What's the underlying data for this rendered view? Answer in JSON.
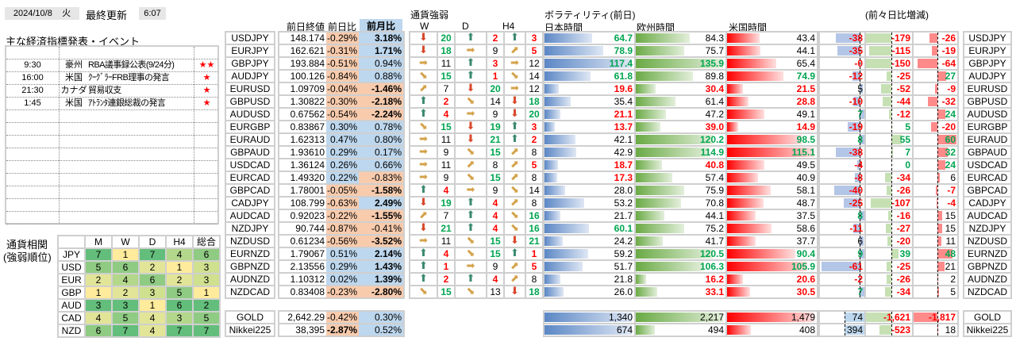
{
  "header": {
    "date": "2024/10/8",
    "weekday": "火",
    "last_update_label": "最終更新",
    "last_update_time": "6:07"
  },
  "events": {
    "title": "主な経済指標発表・イベント",
    "items": [
      {
        "time": "9:30",
        "country": "豪州",
        "title": "RBA議事録公表(9/24分)",
        "stars": "★★"
      },
      {
        "time": "16:00",
        "country": "米国",
        "title": "ｸｰｸﾞﾗｰFRB理事の発言",
        "stars": "★"
      },
      {
        "time": "21:30",
        "country": "カナダ",
        "title": "貿易収支",
        "stars": "★"
      },
      {
        "time": "1:45",
        "country": "米国",
        "title": "ｱﾄﾗﾝﾀ連銀総裁の発言",
        "stars": "★"
      }
    ]
  },
  "prices": {
    "headers": {
      "close": "前日終値",
      "daily": "前日比",
      "monthly": "前月比"
    }
  },
  "strength": {
    "title": "通貨強弱",
    "headers": [
      "W",
      "D",
      "H4"
    ]
  },
  "volatility": {
    "title": "ボラティリティ(前日)",
    "headers": [
      "日本時間",
      "欧州時間",
      "米国時間"
    ],
    "diff_title": "(前々日比増減)"
  },
  "pairs": [
    {
      "pair": "USDJPY",
      "close": "148.174",
      "d": "-0.29%",
      "m": "3.18%",
      "s": [
        [
          "down",
          20,
          "g"
        ],
        [
          "up",
          2,
          "r"
        ],
        [
          "up",
          3,
          "r"
        ]
      ],
      "v": [
        [
          "64.7",
          "g"
        ],
        [
          "84.3",
          "k"
        ],
        [
          "43.4",
          "k"
        ]
      ],
      "df": [
        [
          "-38",
          "r"
        ],
        [
          "-179",
          "r"
        ],
        [
          "-26",
          "r"
        ]
      ]
    },
    {
      "pair": "EURJPY",
      "close": "162.621",
      "d": "-0.31%",
      "m": "1.71%",
      "s": [
        [
          "down",
          18,
          "g"
        ],
        [
          "right",
          9,
          "k"
        ],
        [
          "upright",
          5,
          "r"
        ]
      ],
      "v": [
        [
          "78.9",
          "g"
        ],
        [
          "75.7",
          "k"
        ],
        [
          "44.1",
          "k"
        ]
      ],
      "df": [
        [
          "-35",
          "r"
        ],
        [
          "-115",
          "r"
        ],
        [
          "-19",
          "r"
        ]
      ]
    },
    {
      "pair": "GBPJPY",
      "close": "193.884",
      "d": "-0.51%",
      "m": "0.94%",
      "s": [
        [
          "right",
          11,
          "k"
        ],
        [
          "up",
          3,
          "r"
        ],
        [
          "right",
          12,
          "k"
        ]
      ],
      "v": [
        [
          "117.4",
          "g"
        ],
        [
          "135.9",
          "g"
        ],
        [
          "65.4",
          "k"
        ]
      ],
      "df": [
        [
          "-0",
          "r"
        ],
        [
          "-150",
          "r"
        ],
        [
          "-64",
          "r"
        ]
      ]
    },
    {
      "pair": "AUDJPY",
      "close": "100.126",
      "d": "-0.84%",
      "m": "0.88%",
      "s": [
        [
          "downright",
          15,
          "g"
        ],
        [
          "up",
          1,
          "r"
        ],
        [
          "downright",
          14,
          "k"
        ]
      ],
      "v": [
        [
          "61.8",
          "g"
        ],
        [
          "89.8",
          "k"
        ],
        [
          "74.9",
          "g"
        ]
      ],
      "df": [
        [
          "-12",
          "r"
        ],
        [
          "-25",
          "r"
        ],
        [
          "27",
          "g"
        ]
      ]
    },
    {
      "pair": "EURUSD",
      "close": "1.09709",
      "d": "-0.04%",
      "m": "-1.46%",
      "s": [
        [
          "upright",
          7,
          "k"
        ],
        [
          "down",
          20,
          "g"
        ],
        [
          "right",
          12,
          "k"
        ]
      ],
      "v": [
        [
          "19.6",
          "r"
        ],
        [
          "30.4",
          "r"
        ],
        [
          "21.5",
          "r"
        ]
      ],
      "df": [
        [
          "5",
          "k"
        ],
        [
          "-52",
          "r"
        ],
        [
          "-9",
          "r"
        ]
      ]
    },
    {
      "pair": "GBPUSD",
      "close": "1.30822",
      "d": "-0.30%",
      "m": "-2.18%",
      "s": [
        [
          "up",
          2,
          "r"
        ],
        [
          "downright",
          14,
          "k"
        ],
        [
          "down",
          18,
          "g"
        ]
      ],
      "v": [
        [
          "35.4",
          "k"
        ],
        [
          "61.4",
          "k"
        ],
        [
          "28.8",
          "r"
        ]
      ],
      "df": [
        [
          "-10",
          "r"
        ],
        [
          "-44",
          "r"
        ],
        [
          "-32",
          "r"
        ]
      ]
    },
    {
      "pair": "AUDUSD",
      "close": "0.67562",
      "d": "-0.54%",
      "m": "-2.24%",
      "s": [
        [
          "up",
          4,
          "r"
        ],
        [
          "right",
          9,
          "k"
        ],
        [
          "down",
          20,
          "g"
        ]
      ],
      "v": [
        [
          "21.1",
          "r"
        ],
        [
          "47.2",
          "k"
        ],
        [
          "49.1",
          "k"
        ]
      ],
      "df": [
        [
          "7",
          "g"
        ],
        [
          "-12",
          "r"
        ],
        [
          "24",
          "g"
        ]
      ]
    },
    {
      "pair": "EURGBP",
      "close": "0.83867",
      "d": "0.30%",
      "m": "0.78%",
      "s": [
        [
          "downright",
          15,
          "g"
        ],
        [
          "down",
          19,
          "g"
        ],
        [
          "up",
          3,
          "r"
        ]
      ],
      "v": [
        [
          "13.7",
          "r"
        ],
        [
          "39.0",
          "r"
        ],
        [
          "14.9",
          "r"
        ]
      ],
      "df": [
        [
          "-19",
          "r"
        ],
        [
          "5",
          "g"
        ],
        [
          "-20",
          "r"
        ]
      ]
    },
    {
      "pair": "EURAUD",
      "close": "1.62313",
      "d": "0.47%",
      "m": "0.80%",
      "s": [
        [
          "right",
          11,
          "k"
        ],
        [
          "down",
          21,
          "g"
        ],
        [
          "up",
          2,
          "r"
        ]
      ],
      "v": [
        [
          "42.1",
          "k"
        ],
        [
          "120.2",
          "g"
        ],
        [
          "98.5",
          "g"
        ]
      ],
      "df": [
        [
          "8",
          "g"
        ],
        [
          "55",
          "g"
        ],
        [
          "60",
          "g"
        ]
      ]
    },
    {
      "pair": "GBPAUD",
      "close": "1.93610",
      "d": "0.29%",
      "m": "0.17%",
      "s": [
        [
          "right",
          9,
          "k"
        ],
        [
          "downright",
          15,
          "g"
        ],
        [
          "upright",
          8,
          "k"
        ]
      ],
      "v": [
        [
          "42.9",
          "k"
        ],
        [
          "114.9",
          "g"
        ],
        [
          "115.1",
          "g"
        ]
      ],
      "df": [
        [
          "-38",
          "r"
        ],
        [
          "7",
          "g"
        ],
        [
          "32",
          "g"
        ]
      ]
    },
    {
      "pair": "USDCAD",
      "close": "1.36124",
      "d": "0.26%",
      "m": "0.66%",
      "s": [
        [
          "right",
          11,
          "k"
        ],
        [
          "upright",
          8,
          "k"
        ],
        [
          "upright",
          5,
          "r"
        ]
      ],
      "v": [
        [
          "18.7",
          "r"
        ],
        [
          "40.8",
          "r"
        ],
        [
          "49.5",
          "k"
        ]
      ],
      "df": [
        [
          "-4",
          "r"
        ],
        [
          "0",
          "g"
        ],
        [
          "24",
          "g"
        ]
      ]
    },
    {
      "pair": "EURCAD",
      "close": "1.49320",
      "d": "0.22%",
      "m": "-0.83%",
      "s": [
        [
          "right",
          9,
          "k"
        ],
        [
          "downright",
          15,
          "g"
        ],
        [
          "upright",
          8,
          "k"
        ]
      ],
      "v": [
        [
          "17.3",
          "r"
        ],
        [
          "57.4",
          "k"
        ],
        [
          "40.9",
          "k"
        ]
      ],
      "df": [
        [
          "-8",
          "r"
        ],
        [
          "-34",
          "r"
        ],
        [
          "6",
          "k"
        ]
      ]
    },
    {
      "pair": "GBPCAD",
      "close": "1.78001",
      "d": "-0.05%",
      "m": "-1.58%",
      "s": [
        [
          "up",
          4,
          "r"
        ],
        [
          "right",
          9,
          "k"
        ],
        [
          "downright",
          14,
          "k"
        ]
      ],
      "v": [
        [
          "28.0",
          "k"
        ],
        [
          "75.9",
          "k"
        ],
        [
          "58.1",
          "k"
        ]
      ],
      "df": [
        [
          "-40",
          "r"
        ],
        [
          "-26",
          "r"
        ],
        [
          "-7",
          "r"
        ]
      ]
    },
    {
      "pair": "CADJPY",
      "close": "108.799",
      "d": "-0.63%",
      "m": "2.49%",
      "s": [
        [
          "down",
          19,
          "g"
        ],
        [
          "up",
          4,
          "r"
        ],
        [
          "upright",
          8,
          "k"
        ]
      ],
      "v": [
        [
          "53.2",
          "k"
        ],
        [
          "70.8",
          "k"
        ],
        [
          "48.7",
          "k"
        ]
      ],
      "df": [
        [
          "-25",
          "r"
        ],
        [
          "-107",
          "r"
        ],
        [
          "-4",
          "r"
        ]
      ]
    },
    {
      "pair": "AUDCAD",
      "close": "0.92023",
      "d": "-0.22%",
      "m": "-1.55%",
      "s": [
        [
          "upright",
          7,
          "k"
        ],
        [
          "up",
          4,
          "r"
        ],
        [
          "downright",
          16,
          "g"
        ]
      ],
      "v": [
        [
          "21.7",
          "k"
        ],
        [
          "44.1",
          "k"
        ],
        [
          "37.5",
          "k"
        ]
      ],
      "df": [
        [
          "8",
          "g"
        ],
        [
          "-16",
          "r"
        ],
        [
          "15",
          "k"
        ]
      ]
    },
    {
      "pair": "NZDJPY",
      "close": "90.744",
      "d": "-0.87%",
      "m": "-0.41%",
      "s": [
        [
          "down",
          21,
          "g"
        ],
        [
          "up",
          4,
          "r"
        ],
        [
          "downright",
          16,
          "g"
        ]
      ],
      "v": [
        [
          "60.1",
          "g"
        ],
        [
          "75.2",
          "k"
        ],
        [
          "58.6",
          "k"
        ]
      ],
      "df": [
        [
          "-11",
          "r"
        ],
        [
          "-27",
          "r"
        ],
        [
          "15",
          "k"
        ]
      ]
    },
    {
      "pair": "NZDUSD",
      "close": "0.61234",
      "d": "-0.56%",
      "m": "-3.52%",
      "s": [
        [
          "right",
          11,
          "k"
        ],
        [
          "downright",
          15,
          "g"
        ],
        [
          "down",
          21,
          "g"
        ]
      ],
      "v": [
        [
          "24.2",
          "k"
        ],
        [
          "41.7",
          "k"
        ],
        [
          "37.7",
          "k"
        ]
      ],
      "df": [
        [
          "6",
          "k"
        ],
        [
          "-20",
          "r"
        ],
        [
          "11",
          "k"
        ]
      ]
    },
    {
      "pair": "EURNZD",
      "close": "1.79067",
      "d": "0.51%",
      "m": "2.14%",
      "s": [
        [
          "up",
          4,
          "r"
        ],
        [
          "downright",
          15,
          "g"
        ],
        [
          "up",
          1,
          "r"
        ]
      ],
      "v": [
        [
          "59.2",
          "k"
        ],
        [
          "120.5",
          "g"
        ],
        [
          "90.4",
          "g"
        ]
      ],
      "df": [
        [
          "9",
          "g"
        ],
        [
          "39",
          "g"
        ],
        [
          "48",
          "g"
        ]
      ]
    },
    {
      "pair": "GBPNZD",
      "close": "2.13556",
      "d": "0.29%",
      "m": "1.43%",
      "s": [
        [
          "up",
          1,
          "r"
        ],
        [
          "right",
          9,
          "k"
        ],
        [
          "upright",
          5,
          "r"
        ]
      ],
      "v": [
        [
          "51.7",
          "k"
        ],
        [
          "106.3",
          "g"
        ],
        [
          "105.9",
          "g"
        ]
      ],
      "df": [
        [
          "-61",
          "r"
        ],
        [
          "-25",
          "r"
        ],
        [
          "21",
          "k"
        ]
      ]
    },
    {
      "pair": "AUDNZD",
      "close": "1.10312",
      "d": "0.02%",
      "m": "1.39%",
      "s": [
        [
          "up",
          2,
          "r"
        ],
        [
          "up",
          4,
          "r"
        ],
        [
          "upright",
          8,
          "k"
        ]
      ],
      "v": [
        [
          "21.8",
          "k"
        ],
        [
          "16.2",
          "r"
        ],
        [
          "20.6",
          "r"
        ]
      ],
      "df": [
        [
          "-2",
          "r"
        ],
        [
          "-26",
          "r"
        ],
        [
          "2",
          "k"
        ]
      ]
    },
    {
      "pair": "NZDCAD",
      "close": "0.83408",
      "d": "-0.23%",
      "m": "-2.80%",
      "s": [
        [
          "downright",
          15,
          "g"
        ],
        [
          "downright",
          13,
          "k"
        ],
        [
          "down",
          18,
          "g"
        ]
      ],
      "v": [
        [
          "26.0",
          "k"
        ],
        [
          "33.1",
          "r"
        ],
        [
          "30.5",
          "r"
        ]
      ],
      "df": [
        [
          "7",
          "g"
        ],
        [
          "-34",
          "r"
        ],
        [
          "5",
          "k"
        ]
      ]
    }
  ],
  "others": [
    {
      "pair": "GOLD",
      "close": "2,642.29",
      "d": "-0.42%",
      "m": "0.30%",
      "v": [
        [
          "1,340",
          "k"
        ],
        [
          "2,217",
          "k"
        ],
        [
          "1,479",
          "k"
        ]
      ],
      "df": [
        [
          "74",
          "k"
        ],
        [
          "-1,621",
          "r"
        ],
        [
          "-1,817",
          "r"
        ]
      ]
    },
    {
      "pair": "Nikkei225",
      "close": "38,395",
      "d": "-2.87%",
      "m": "0.52%",
      "v": [
        [
          "674",
          "k"
        ],
        [
          "494",
          "k"
        ],
        [
          "408",
          "k"
        ]
      ],
      "df": [
        [
          "394",
          "k"
        ],
        [
          "-523",
          "r"
        ],
        [
          "18",
          "k"
        ]
      ]
    }
  ],
  "ranking": {
    "title": "通貨相関",
    "subtitle": "(強弱順位)",
    "headers": [
      "M",
      "W",
      "D",
      "H4",
      "総合"
    ],
    "rows": [
      {
        "ccy": "JPY",
        "ranks": [
          7,
          1,
          7,
          4,
          6
        ]
      },
      {
        "ccy": "USD",
        "ranks": [
          5,
          6,
          2,
          1,
          3
        ]
      },
      {
        "ccy": "EUR",
        "ranks": [
          2,
          4,
          6,
          2,
          3
        ]
      },
      {
        "ccy": "GBP",
        "ranks": [
          1,
          2,
          3,
          5,
          1
        ]
      },
      {
        "ccy": "AUD",
        "ranks": [
          3,
          3,
          1,
          6,
          2
        ]
      },
      {
        "ccy": "CAD",
        "ranks": [
          4,
          5,
          4,
          3,
          5
        ]
      },
      {
        "ccy": "NZD",
        "ranks": [
          6,
          7,
          4,
          7,
          7
        ]
      }
    ]
  }
}
